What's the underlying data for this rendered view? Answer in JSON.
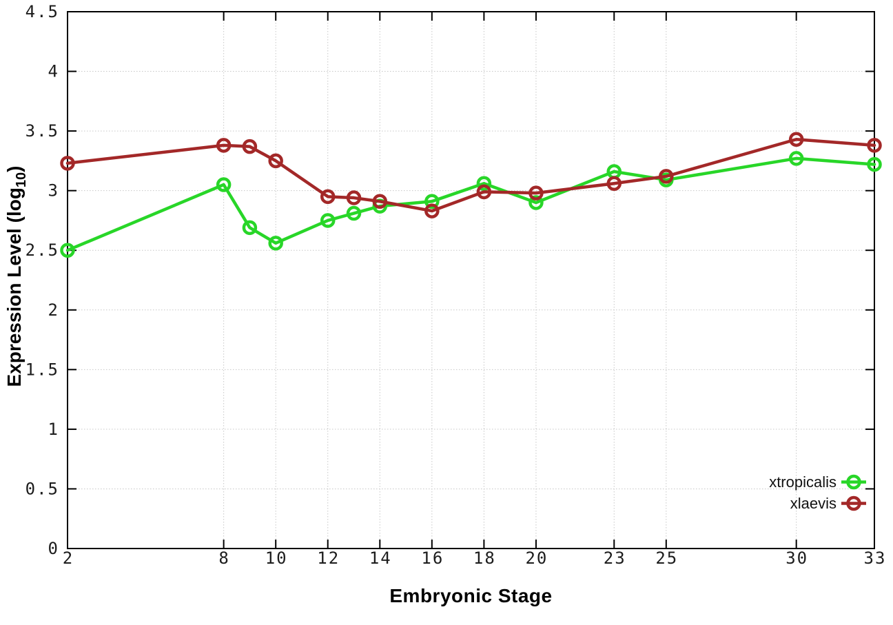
{
  "chart_data": {
    "type": "line",
    "title": "",
    "xlabel": "Embryonic Stage",
    "ylabel": "Expression Level (log10)",
    "ylabel_parts": {
      "prefix": "Expression Level (log",
      "sub": "10",
      "suffix": ")"
    },
    "xlim": [
      2,
      33
    ],
    "ylim": [
      0,
      4.5
    ],
    "x_ticks": [
      2,
      8,
      10,
      12,
      14,
      16,
      18,
      20,
      23,
      25,
      30,
      33
    ],
    "y_ticks": [
      0,
      0.5,
      1,
      1.5,
      2,
      2.5,
      3,
      3.5,
      4,
      4.5
    ],
    "grid": true,
    "legend_position": "bottom-right",
    "x": [
      2,
      8,
      9,
      10,
      12,
      13,
      14,
      16,
      18,
      20,
      23,
      25,
      30,
      33
    ],
    "series": [
      {
        "name": "xtropicalis",
        "color": "#28d628",
        "marker": "open-circle",
        "values": [
          2.5,
          3.05,
          2.69,
          2.56,
          2.75,
          2.81,
          2.87,
          2.91,
          3.06,
          2.9,
          3.16,
          3.09,
          3.27,
          3.22
        ]
      },
      {
        "name": "xlaevis",
        "color": "#a32828",
        "marker": "open-circle",
        "values": [
          3.23,
          3.38,
          3.37,
          3.25,
          2.95,
          2.94,
          2.91,
          2.83,
          2.99,
          2.98,
          3.06,
          3.12,
          3.43,
          3.38
        ]
      }
    ]
  },
  "colors": {
    "background": "#ffffff",
    "grid": "#c6c6c6",
    "axis": "#000000",
    "tick_text": "#1c1c1c"
  }
}
